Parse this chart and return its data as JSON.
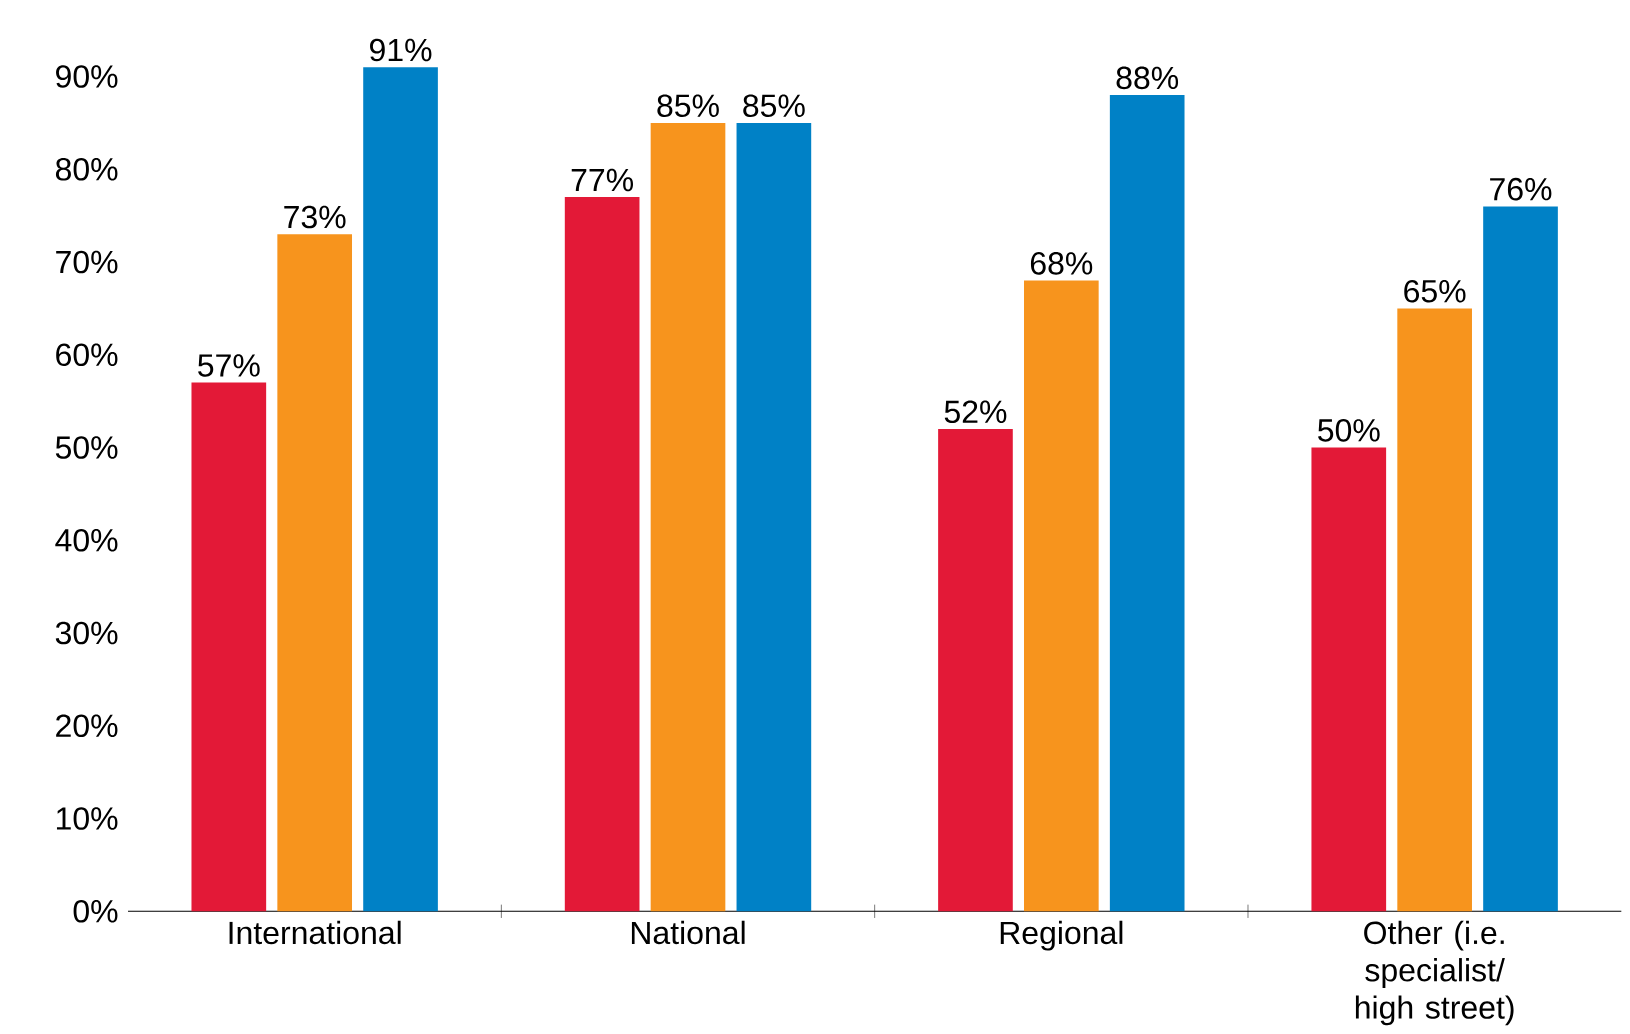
{
  "chart_data": {
    "type": "bar",
    "categories": [
      "International",
      "National",
      "Regional",
      "Other (i.e. specialist/ high street)"
    ],
    "series": [
      {
        "color": "#e31937",
        "values": [
          57,
          77,
          52,
          50
        ],
        "value_labels": [
          "57%",
          "77%",
          "52%",
          "50%"
        ]
      },
      {
        "color": "#f7941d",
        "values": [
          73,
          85,
          68,
          65
        ],
        "value_labels": [
          "73%",
          "85%",
          "68%",
          "65%"
        ]
      },
      {
        "color": "#0081c6",
        "values": [
          91,
          85,
          88,
          76
        ],
        "value_labels": [
          "91%",
          "85%",
          "88%",
          "76%"
        ]
      }
    ],
    "ylim": [
      0,
      92
    ],
    "yticks": [
      {
        "value": 0,
        "label": "0%"
      },
      {
        "value": 10,
        "label": "10%"
      },
      {
        "value": 20,
        "label": "20%"
      },
      {
        "value": 30,
        "label": "30%"
      },
      {
        "value": 40,
        "label": "40%"
      },
      {
        "value": 50,
        "label": "50%"
      },
      {
        "value": 60,
        "label": "60%"
      },
      {
        "value": 70,
        "label": "70%"
      },
      {
        "value": 80,
        "label": "80%"
      },
      {
        "value": 90,
        "label": "90%"
      }
    ]
  }
}
